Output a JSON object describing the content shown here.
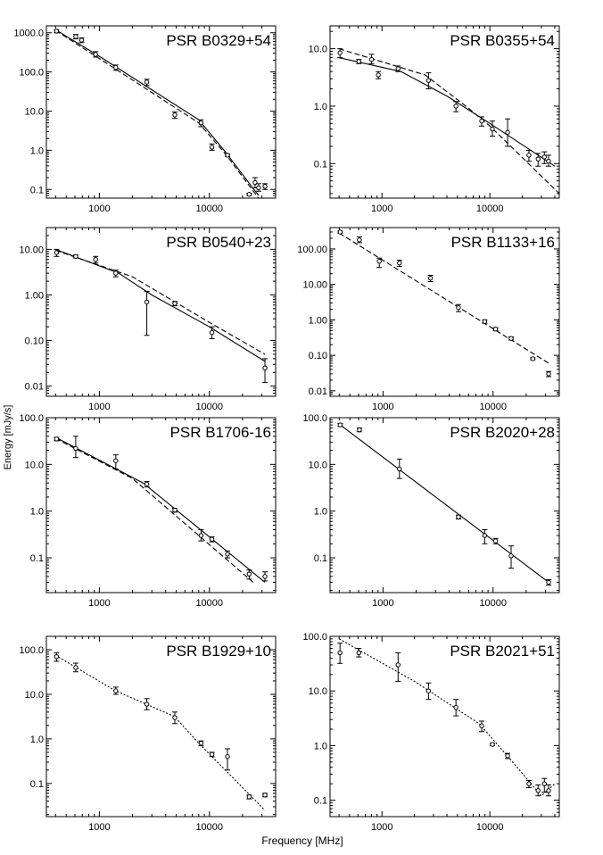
{
  "figure": {
    "ylabel": "Energy [mJy/s]",
    "xlabel": "Frequency [MHz]"
  },
  "chart_data": [
    {
      "type": "scatter",
      "title": "PSR B0329+54",
      "x_scale": "log",
      "y_scale": "log",
      "xlim": [
        330,
        40000
      ],
      "ylim": [
        0.06,
        1500
      ],
      "x_ticks": [
        {
          "v": 1000,
          "label": "1000"
        },
        {
          "v": 10000,
          "label": "10000"
        }
      ],
      "y_ticks": [
        {
          "v": 1000,
          "label": "1000.0"
        },
        {
          "v": 100,
          "label": "100.0"
        },
        {
          "v": 10,
          "label": "10.0"
        },
        {
          "v": 1,
          "label": "1.0"
        },
        {
          "v": 0.1,
          "label": "0.1"
        }
      ],
      "points": [
        {
          "x": 408,
          "y": 1100,
          "lo": 1000,
          "hi": 1200
        },
        {
          "x": 610,
          "y": 800,
          "lo": 700,
          "hi": 900
        },
        {
          "x": 690,
          "y": 650,
          "lo": 560,
          "hi": 740
        },
        {
          "x": 925,
          "y": 280,
          "lo": 240,
          "hi": 330
        },
        {
          "x": 1410,
          "y": 130,
          "lo": 110,
          "hi": 150
        },
        {
          "x": 2700,
          "y": 55,
          "lo": 45,
          "hi": 65
        },
        {
          "x": 4850,
          "y": 8,
          "lo": 6.5,
          "hi": 9.5
        },
        {
          "x": 8400,
          "y": 5,
          "lo": 4,
          "hi": 6
        },
        {
          "x": 10550,
          "y": 1.2,
          "lo": 1,
          "hi": 1.45
        },
        {
          "x": 14600,
          "y": 0.75,
          "lo": 0.7,
          "hi": 0.8
        },
        {
          "x": 23000,
          "y": 0.075,
          "lo": 0.07,
          "hi": 0.08
        },
        {
          "x": 26000,
          "y": 0.15,
          "lo": 0.11,
          "hi": 0.2
        },
        {
          "x": 28000,
          "y": 0.11,
          "lo": 0.09,
          "hi": 0.14
        },
        {
          "x": 32000,
          "y": 0.12,
          "lo": 0.1,
          "hi": 0.14
        }
      ],
      "lines": [
        {
          "style": "solid",
          "points": [
            [
              400,
              1200
            ],
            [
              1000,
              250
            ],
            [
              8000,
              6
            ],
            [
              14000,
              0.9
            ],
            [
              28000,
              0.07
            ]
          ]
        },
        {
          "style": "dashed",
          "points": [
            [
              400,
              1150
            ],
            [
              1000,
              220
            ],
            [
              8000,
              5
            ],
            [
              14000,
              0.8
            ],
            [
              28000,
              0.06
            ]
          ]
        }
      ]
    },
    {
      "type": "scatter",
      "title": "PSR B0355+54",
      "x_scale": "log",
      "y_scale": "log",
      "xlim": [
        330,
        44000
      ],
      "ylim": [
        0.025,
        25
      ],
      "x_ticks": [
        {
          "v": 1000,
          "label": "1000"
        },
        {
          "v": 10000,
          "label": "10000"
        }
      ],
      "y_ticks": [
        {
          "v": 10,
          "label": "10.0"
        },
        {
          "v": 1,
          "label": "1.0"
        },
        {
          "v": 0.1,
          "label": "0.1"
        }
      ],
      "points": [
        {
          "x": 408,
          "y": 8.5,
          "lo": 7,
          "hi": 10
        },
        {
          "x": 610,
          "y": 6,
          "lo": 5.5,
          "hi": 6.5
        },
        {
          "x": 800,
          "y": 6.5,
          "lo": 5.5,
          "hi": 8
        },
        {
          "x": 925,
          "y": 3.5,
          "lo": 3,
          "hi": 4
        },
        {
          "x": 1410,
          "y": 4.5,
          "lo": 4,
          "hi": 5
        },
        {
          "x": 2700,
          "y": 2.8,
          "lo": 2,
          "hi": 3.8
        },
        {
          "x": 4850,
          "y": 1,
          "lo": 0.8,
          "hi": 1.2
        },
        {
          "x": 8400,
          "y": 0.55,
          "lo": 0.45,
          "hi": 0.65
        },
        {
          "x": 10550,
          "y": 0.4,
          "lo": 0.3,
          "hi": 0.55
        },
        {
          "x": 14600,
          "y": 0.35,
          "lo": 0.2,
          "hi": 0.6
        },
        {
          "x": 23000,
          "y": 0.14,
          "lo": 0.11,
          "hi": 0.17
        },
        {
          "x": 28000,
          "y": 0.12,
          "lo": 0.09,
          "hi": 0.15
        },
        {
          "x": 32000,
          "y": 0.13,
          "lo": 0.1,
          "hi": 0.16
        },
        {
          "x": 35000,
          "y": 0.11,
          "lo": 0.09,
          "hi": 0.14
        }
      ],
      "lines": [
        {
          "style": "solid",
          "points": [
            [
              400,
              7
            ],
            [
              1500,
              4
            ],
            [
              4000,
              1.5
            ],
            [
              10000,
              0.5
            ],
            [
              40000,
              0.09
            ]
          ]
        },
        {
          "style": "dashed",
          "points": [
            [
              400,
              10
            ],
            [
              2500,
              3.5
            ],
            [
              6000,
              1
            ],
            [
              10000,
              0.45
            ],
            [
              44000,
              0.03
            ]
          ]
        }
      ]
    },
    {
      "type": "scatter",
      "title": "PSR B0540+23",
      "x_scale": "log",
      "y_scale": "log",
      "xlim": [
        330,
        40000
      ],
      "ylim": [
        0.006,
        30
      ],
      "x_ticks": [
        {
          "v": 1000,
          "label": "1000"
        },
        {
          "v": 10000,
          "label": "10000"
        }
      ],
      "y_ticks": [
        {
          "v": 10,
          "label": "10.00"
        },
        {
          "v": 1,
          "label": "1.00"
        },
        {
          "v": 0.1,
          "label": "0.10"
        },
        {
          "v": 0.01,
          "label": "0.01"
        }
      ],
      "points": [
        {
          "x": 408,
          "y": 8.5,
          "lo": 7,
          "hi": 10
        },
        {
          "x": 610,
          "y": 7,
          "lo": 6.5,
          "hi": 7.5
        },
        {
          "x": 925,
          "y": 6,
          "lo": 5,
          "hi": 7
        },
        {
          "x": 1410,
          "y": 3,
          "lo": 2.5,
          "hi": 3.5
        },
        {
          "x": 2700,
          "y": 0.7,
          "lo": 0.13,
          "hi": 1.2
        },
        {
          "x": 4850,
          "y": 0.65,
          "lo": 0.58,
          "hi": 0.72
        },
        {
          "x": 10550,
          "y": 0.15,
          "lo": 0.11,
          "hi": 0.2
        },
        {
          "x": 32000,
          "y": 0.025,
          "lo": 0.012,
          "hi": 0.04
        }
      ],
      "lines": [
        {
          "style": "solid",
          "points": [
            [
              400,
              10
            ],
            [
              1500,
              3
            ],
            [
              3000,
              1
            ],
            [
              10000,
              0.2
            ],
            [
              32000,
              0.035
            ]
          ]
        },
        {
          "style": "dashed",
          "points": [
            [
              400,
              9.5
            ],
            [
              2000,
              2.5
            ],
            [
              10000,
              0.25
            ],
            [
              32000,
              0.05
            ]
          ]
        }
      ]
    },
    {
      "type": "scatter",
      "title": "PSR B1133+16",
      "x_scale": "log",
      "y_scale": "log",
      "xlim": [
        330,
        40000
      ],
      "ylim": [
        0.007,
        400
      ],
      "x_ticks": [
        {
          "v": 1000,
          "label": "1000"
        },
        {
          "v": 10000,
          "label": "10000"
        }
      ],
      "y_ticks": [
        {
          "v": 100,
          "label": "100.00"
        },
        {
          "v": 10,
          "label": "10.00"
        },
        {
          "v": 1,
          "label": "1.00"
        },
        {
          "v": 0.1,
          "label": "0.10"
        },
        {
          "v": 0.01,
          "label": "0.01"
        }
      ],
      "points": [
        {
          "x": 408,
          "y": 300,
          "lo": 280,
          "hi": 320
        },
        {
          "x": 610,
          "y": 180,
          "lo": 150,
          "hi": 220
        },
        {
          "x": 925,
          "y": 45,
          "lo": 30,
          "hi": 55
        },
        {
          "x": 1410,
          "y": 40,
          "lo": 32,
          "hi": 48
        },
        {
          "x": 2700,
          "y": 15,
          "lo": 12,
          "hi": 18
        },
        {
          "x": 4850,
          "y": 2.2,
          "lo": 1.7,
          "hi": 2.7
        },
        {
          "x": 8400,
          "y": 0.9,
          "lo": 0.8,
          "hi": 1
        },
        {
          "x": 10550,
          "y": 0.55,
          "lo": 0.5,
          "hi": 0.6
        },
        {
          "x": 14600,
          "y": 0.3,
          "lo": 0.27,
          "hi": 0.33
        },
        {
          "x": 23000,
          "y": 0.08,
          "lo": 0.075,
          "hi": 0.085
        },
        {
          "x": 32000,
          "y": 0.03,
          "lo": 0.025,
          "hi": 0.035
        }
      ],
      "lines": [
        {
          "style": "dashed",
          "points": [
            [
              400,
              280
            ],
            [
              32000,
              0.06
            ]
          ]
        }
      ]
    },
    {
      "type": "scatter",
      "title": "PSR B1706-16",
      "x_scale": "log",
      "y_scale": "log",
      "xlim": [
        330,
        40000
      ],
      "ylim": [
        0.018,
        100
      ],
      "x_ticks": [
        {
          "v": 1000,
          "label": "1000"
        },
        {
          "v": 10000,
          "label": "10000"
        }
      ],
      "y_ticks": [
        {
          "v": 100,
          "label": "100.0"
        },
        {
          "v": 10,
          "label": "10.0"
        },
        {
          "v": 1,
          "label": "1.0"
        },
        {
          "v": 0.1,
          "label": "0.1"
        }
      ],
      "points": [
        {
          "x": 408,
          "y": 35,
          "lo": 32,
          "hi": 38
        },
        {
          "x": 610,
          "y": 22,
          "lo": 14,
          "hi": 40
        },
        {
          "x": 1410,
          "y": 12,
          "lo": 8,
          "hi": 16
        },
        {
          "x": 2700,
          "y": 3.8,
          "lo": 3.3,
          "hi": 4.3
        },
        {
          "x": 4850,
          "y": 1.05,
          "lo": 0.95,
          "hi": 1.15
        },
        {
          "x": 8400,
          "y": 0.3,
          "lo": 0.23,
          "hi": 0.4
        },
        {
          "x": 10550,
          "y": 0.25,
          "lo": 0.22,
          "hi": 0.28
        },
        {
          "x": 14600,
          "y": 0.12,
          "lo": 0.1,
          "hi": 0.14
        },
        {
          "x": 23000,
          "y": 0.045,
          "lo": 0.035,
          "hi": 0.055
        },
        {
          "x": 32000,
          "y": 0.04,
          "lo": 0.032,
          "hi": 0.05
        }
      ],
      "lines": [
        {
          "style": "solid",
          "points": [
            [
              400,
              38
            ],
            [
              2500,
              4
            ],
            [
              10000,
              0.28
            ],
            [
              32000,
              0.03
            ]
          ]
        },
        {
          "style": "dashed",
          "points": [
            [
              400,
              36
            ],
            [
              2000,
              5
            ],
            [
              8000,
              0.3
            ],
            [
              25000,
              0.03
            ]
          ]
        }
      ]
    },
    {
      "type": "scatter",
      "title": "PSR B2020+28",
      "x_scale": "log",
      "y_scale": "log",
      "xlim": [
        330,
        40000
      ],
      "ylim": [
        0.018,
        100
      ],
      "x_ticks": [
        {
          "v": 1000,
          "label": "1000"
        },
        {
          "v": 10000,
          "label": "10000"
        }
      ],
      "y_ticks": [
        {
          "v": 100,
          "label": "100.0"
        },
        {
          "v": 10,
          "label": "10.0"
        },
        {
          "v": 1,
          "label": "1.0"
        },
        {
          "v": 0.1,
          "label": "0.1"
        }
      ],
      "points": [
        {
          "x": 408,
          "y": 70,
          "lo": 65,
          "hi": 75
        },
        {
          "x": 610,
          "y": 55,
          "lo": 50,
          "hi": 60
        },
        {
          "x": 1410,
          "y": 8,
          "lo": 5,
          "hi": 13
        },
        {
          "x": 4850,
          "y": 0.75,
          "lo": 0.68,
          "hi": 0.82
        },
        {
          "x": 8400,
          "y": 0.3,
          "lo": 0.2,
          "hi": 0.4
        },
        {
          "x": 10550,
          "y": 0.23,
          "lo": 0.2,
          "hi": 0.26
        },
        {
          "x": 14600,
          "y": 0.11,
          "lo": 0.06,
          "hi": 0.18
        },
        {
          "x": 32000,
          "y": 0.03,
          "lo": 0.026,
          "hi": 0.034
        }
      ],
      "lines": [
        {
          "style": "solid",
          "points": [
            [
              408,
              70
            ],
            [
              32000,
              0.03
            ]
          ]
        }
      ]
    },
    {
      "type": "scatter",
      "title": "PSR B1929+10",
      "x_scale": "log",
      "y_scale": "log",
      "xlim": [
        330,
        40000
      ],
      "ylim": [
        0.018,
        200
      ],
      "x_ticks": [
        {
          "v": 1000,
          "label": "1000"
        },
        {
          "v": 10000,
          "label": "10000"
        }
      ],
      "y_ticks": [
        {
          "v": 100,
          "label": "100.0"
        },
        {
          "v": 10,
          "label": "10.0"
        },
        {
          "v": 1,
          "label": "1.0"
        },
        {
          "v": 0.1,
          "label": "0.1"
        }
      ],
      "points": [
        {
          "x": 408,
          "y": 70,
          "lo": 55,
          "hi": 85
        },
        {
          "x": 610,
          "y": 40,
          "lo": 32,
          "hi": 50
        },
        {
          "x": 1410,
          "y": 12,
          "lo": 10,
          "hi": 14.5
        },
        {
          "x": 2700,
          "y": 6,
          "lo": 4.5,
          "hi": 8
        },
        {
          "x": 4850,
          "y": 3,
          "lo": 2.2,
          "hi": 4
        },
        {
          "x": 8400,
          "y": 0.8,
          "lo": 0.7,
          "hi": 0.9
        },
        {
          "x": 10550,
          "y": 0.45,
          "lo": 0.4,
          "hi": 0.5
        },
        {
          "x": 14600,
          "y": 0.4,
          "lo": 0.2,
          "hi": 0.6
        },
        {
          "x": 23000,
          "y": 0.05,
          "lo": 0.045,
          "hi": 0.055
        },
        {
          "x": 32000,
          "y": 0.055,
          "lo": 0.05,
          "hi": 0.06
        }
      ],
      "lines": [
        {
          "style": "dotted",
          "points": [
            [
              400,
              75
            ],
            [
              1400,
              12
            ],
            [
              4800,
              3.2
            ],
            [
              8000,
              0.8
            ],
            [
              32000,
              0.025
            ]
          ]
        }
      ]
    },
    {
      "type": "scatter",
      "title": "PSR B2021+51",
      "x_scale": "log",
      "y_scale": "log",
      "xlim": [
        330,
        44000
      ],
      "ylim": [
        0.05,
        100
      ],
      "x_ticks": [
        {
          "v": 1000,
          "label": "1000"
        },
        {
          "v": 10000,
          "label": "10000"
        }
      ],
      "y_ticks": [
        {
          "v": 100,
          "label": "100.0"
        },
        {
          "v": 10,
          "label": "10.0"
        },
        {
          "v": 1,
          "label": "1.0"
        },
        {
          "v": 0.1,
          "label": "0.1"
        }
      ],
      "points": [
        {
          "x": 408,
          "y": 50,
          "lo": 32,
          "hi": 75
        },
        {
          "x": 610,
          "y": 50,
          "lo": 42,
          "hi": 60
        },
        {
          "x": 1410,
          "y": 30,
          "lo": 15,
          "hi": 50
        },
        {
          "x": 2700,
          "y": 10,
          "lo": 7,
          "hi": 14
        },
        {
          "x": 4850,
          "y": 5,
          "lo": 3.5,
          "hi": 7
        },
        {
          "x": 8400,
          "y": 2.3,
          "lo": 1.8,
          "hi": 2.8
        },
        {
          "x": 10550,
          "y": 1.05,
          "lo": 1,
          "hi": 1.1
        },
        {
          "x": 14600,
          "y": 0.65,
          "lo": 0.58,
          "hi": 0.72
        },
        {
          "x": 23000,
          "y": 0.2,
          "lo": 0.17,
          "hi": 0.23
        },
        {
          "x": 28000,
          "y": 0.15,
          "lo": 0.12,
          "hi": 0.19
        },
        {
          "x": 32000,
          "y": 0.2,
          "lo": 0.14,
          "hi": 0.25
        },
        {
          "x": 35000,
          "y": 0.15,
          "lo": 0.12,
          "hi": 0.19
        }
      ],
      "lines": [
        {
          "style": "dotted",
          "points": [
            [
              400,
              90
            ],
            [
              2000,
              15
            ],
            [
              8000,
              2.5
            ],
            [
              15000,
              0.6
            ],
            [
              30000,
              0.12
            ],
            [
              40000,
              0.2
            ]
          ]
        }
      ]
    }
  ]
}
